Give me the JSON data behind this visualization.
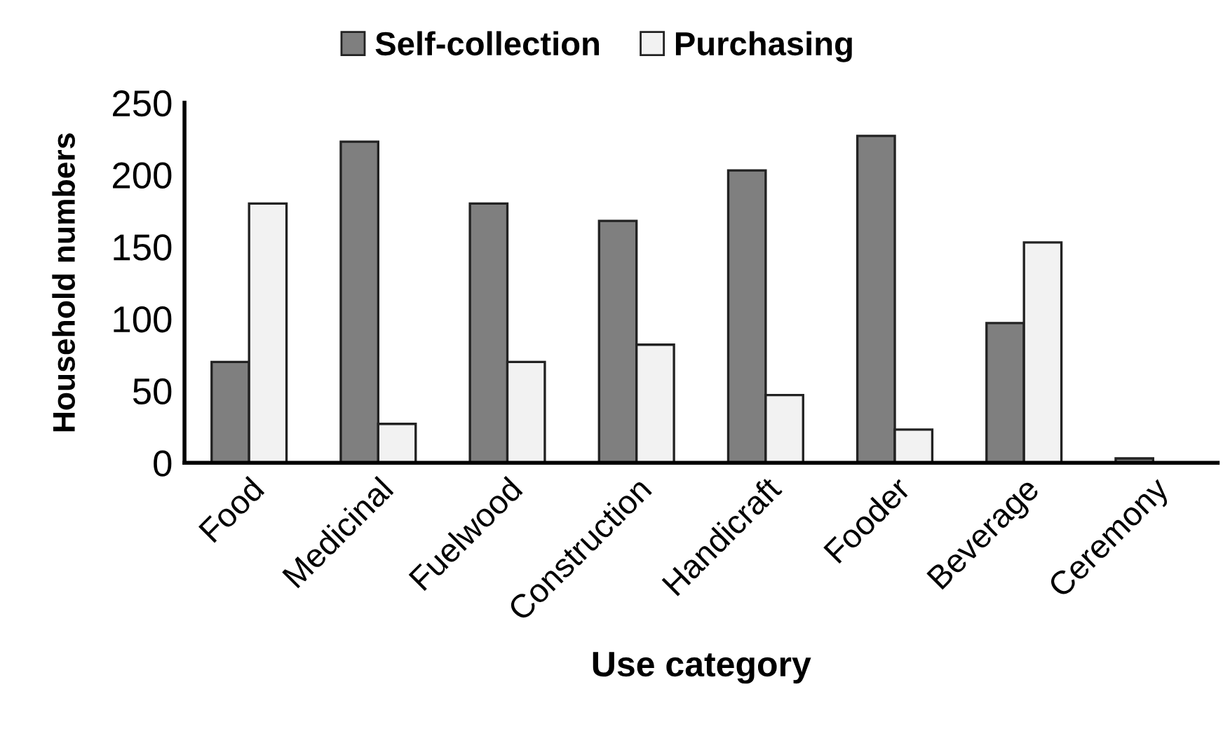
{
  "chart_data": {
    "type": "bar",
    "xlabel": "Use category",
    "ylabel": "Household numbers",
    "categories": [
      "Food",
      "Medicinal",
      "Fuelwood",
      "Construction",
      "Handicraft",
      "Fooder",
      "Beverage",
      "Ceremony"
    ],
    "series": [
      {
        "name": "Self-collection",
        "color": "#7f7f7f",
        "values": [
          70,
          223,
          180,
          168,
          203,
          227,
          97,
          3
        ]
      },
      {
        "name": "Purchasing",
        "color": "#f2f2f2",
        "values": [
          180,
          27,
          70,
          82,
          47,
          23,
          153,
          null
        ]
      }
    ],
    "ylim": [
      0,
      250
    ],
    "yticks": [
      0,
      50,
      100,
      150,
      200,
      250
    ],
    "grid": false,
    "legend": "top"
  }
}
